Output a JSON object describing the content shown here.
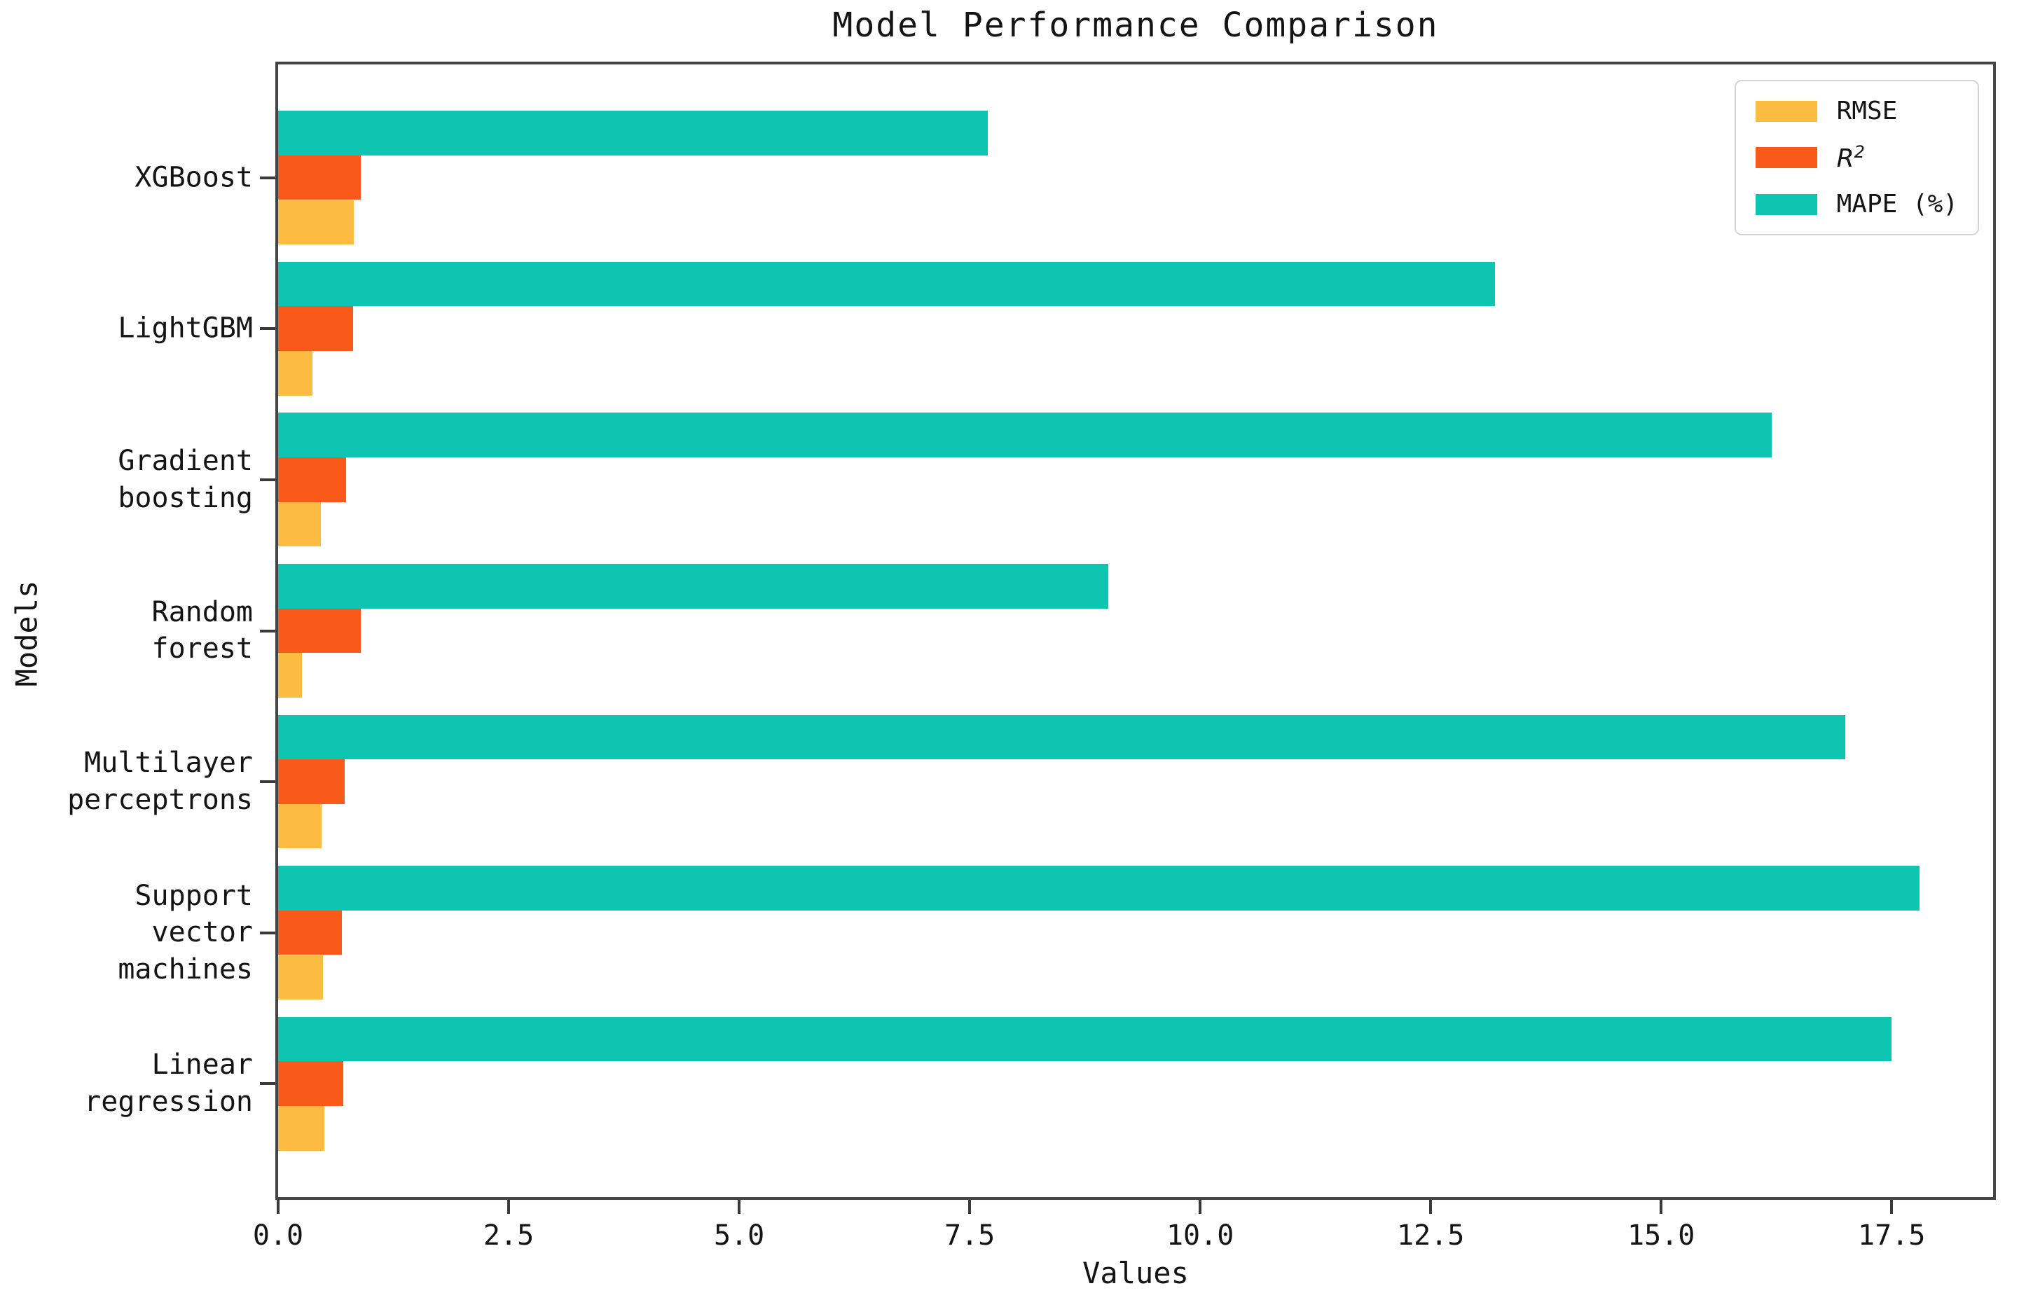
{
  "figure": {
    "background": "#ffffff",
    "axis_color": "#444444",
    "text_color": "#141414"
  },
  "chart_data": {
    "type": "bar",
    "orientation": "horizontal",
    "title": "Model Performance Comparison",
    "xlabel": "Values",
    "ylabel": "Models",
    "categories": [
      "XGBoost",
      "LightGBM",
      "Gradient\nboosting",
      "Random\nforest",
      "Multilayer\nperceptrons",
      "Support\nvector\nmachines",
      "Linear\nregression"
    ],
    "series": [
      {
        "name": "RMSE",
        "color": "#FBBC41",
        "values": [
          0.82,
          0.37,
          0.46,
          0.26,
          0.47,
          0.49,
          0.5
        ]
      },
      {
        "name": "R²",
        "color": "#F95A19",
        "math": true,
        "values": [
          0.9,
          0.81,
          0.74,
          0.9,
          0.72,
          0.69,
          0.71
        ]
      },
      {
        "name": "MAPE (%)",
        "color": "#0DC5B1",
        "values": [
          7.7,
          13.2,
          16.2,
          9.0,
          17.0,
          17.8,
          17.5
        ]
      }
    ],
    "xlim": [
      0,
      18.6
    ],
    "x_ticks": [
      0,
      2.5,
      5.0,
      7.5,
      10.0,
      12.5,
      15.0,
      17.5
    ],
    "x_tick_labels": [
      "0.0",
      "2.5",
      "5.0",
      "7.5",
      "10.0",
      "12.5",
      "15.0",
      "17.5"
    ],
    "grid": false,
    "legend_position": "upper right"
  }
}
